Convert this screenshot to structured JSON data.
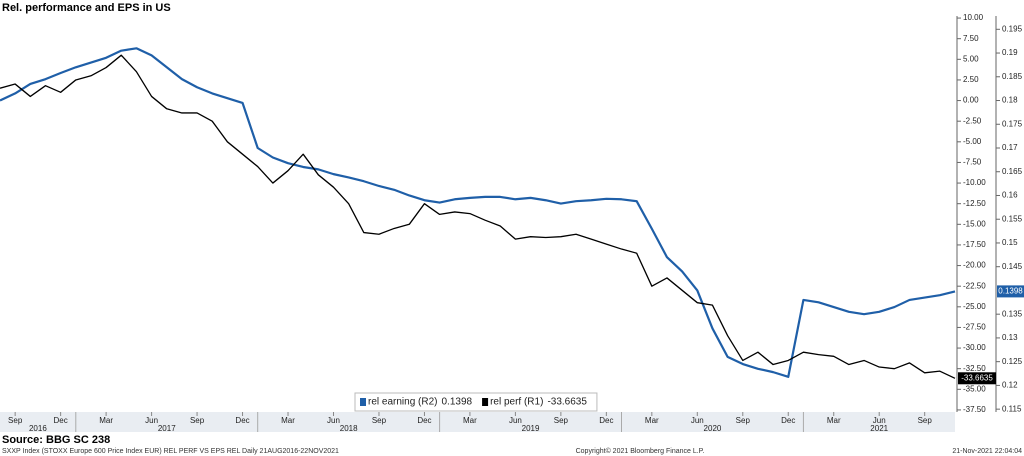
{
  "chart_data": {
    "type": "line",
    "title": "Rel. performance and EPS in US",
    "source": "Source: BBG SC 238",
    "footer": {
      "left": "SXXP Index (STOXX Europe 600 Price Index EUR) REL PERF VS EPS REL  Daily 21AUG2016-22NOV2021",
      "center": "Copyright© 2021 Bloomberg Finance L.P.",
      "right": "21-Nov-2021 22:04:04"
    },
    "x": [
      "2016-08",
      "2016-09",
      "2016-10",
      "2016-11",
      "2016-12",
      "2017-01",
      "2017-02",
      "2017-03",
      "2017-04",
      "2017-05",
      "2017-06",
      "2017-07",
      "2017-08",
      "2017-09",
      "2017-10",
      "2017-11",
      "2017-12",
      "2018-01",
      "2018-02",
      "2018-03",
      "2018-04",
      "2018-05",
      "2018-06",
      "2018-07",
      "2018-08",
      "2018-09",
      "2018-10",
      "2018-11",
      "2018-12",
      "2019-01",
      "2019-02",
      "2019-03",
      "2019-04",
      "2019-05",
      "2019-06",
      "2019-07",
      "2019-08",
      "2019-09",
      "2019-10",
      "2019-11",
      "2019-12",
      "2020-01",
      "2020-02",
      "2020-03",
      "2020-04",
      "2020-05",
      "2020-06",
      "2020-07",
      "2020-08",
      "2020-09",
      "2020-10",
      "2020-11",
      "2020-12",
      "2021-01",
      "2021-02",
      "2021-03",
      "2021-04",
      "2021-05",
      "2021-06",
      "2021-07",
      "2021-08",
      "2021-09",
      "2021-10",
      "2021-11"
    ],
    "xlim": [
      "2016-08",
      "2021-11"
    ],
    "xticks": [
      {
        "value": "2016-09",
        "label": "Sep"
      },
      {
        "value": "2016-12",
        "label": "Dec"
      },
      {
        "value": "2017-03",
        "label": "Mar"
      },
      {
        "value": "2017-06",
        "label": "Jun"
      },
      {
        "value": "2017-09",
        "label": "Sep"
      },
      {
        "value": "2017-12",
        "label": "Dec"
      },
      {
        "value": "2018-03",
        "label": "Mar"
      },
      {
        "value": "2018-06",
        "label": "Jun"
      },
      {
        "value": "2018-09",
        "label": "Sep"
      },
      {
        "value": "2018-12",
        "label": "Dec"
      },
      {
        "value": "2019-03",
        "label": "Mar"
      },
      {
        "value": "2019-06",
        "label": "Jun"
      },
      {
        "value": "2019-09",
        "label": "Sep"
      },
      {
        "value": "2019-12",
        "label": "Dec"
      },
      {
        "value": "2020-03",
        "label": "Mar"
      },
      {
        "value": "2020-06",
        "label": "Jun"
      },
      {
        "value": "2020-09",
        "label": "Sep"
      },
      {
        "value": "2020-12",
        "label": "Dec"
      },
      {
        "value": "2021-03",
        "label": "Mar"
      },
      {
        "value": "2021-06",
        "label": "Jun"
      },
      {
        "value": "2021-09",
        "label": "Sep"
      }
    ],
    "xyears": [
      "2016",
      "2017",
      "2018",
      "2019",
      "2020",
      "2021"
    ],
    "ylim": [
      -37.75,
      10.25
    ],
    "yticks": [
      {
        "value": 10,
        "label": "10.00"
      },
      {
        "value": 7.5,
        "label": "7.50"
      },
      {
        "value": 5,
        "label": "5.00"
      },
      {
        "value": 2.5,
        "label": "2.50"
      },
      {
        "value": 0,
        "label": "0.00"
      },
      {
        "value": -2.5,
        "label": "-2.50"
      },
      {
        "value": -5,
        "label": "-5.00"
      },
      {
        "value": -7.5,
        "label": "-7.50"
      },
      {
        "value": -10,
        "label": "-10.00"
      },
      {
        "value": -12.5,
        "label": "-12.50"
      },
      {
        "value": -15,
        "label": "-15.00"
      },
      {
        "value": -17.5,
        "label": "-17.50"
      },
      {
        "value": -20,
        "label": "-20.00"
      },
      {
        "value": -22.5,
        "label": "-22.50"
      },
      {
        "value": -25,
        "label": "-25.00"
      },
      {
        "value": -27.5,
        "label": "-27.50"
      },
      {
        "value": -30,
        "label": "-30.00"
      },
      {
        "value": -32.5,
        "label": "-32.50"
      },
      {
        "value": -35,
        "label": "-35.00"
      },
      {
        "value": -37.5,
        "label": "-37.50"
      }
    ],
    "y2lim": [
      0.1144,
      0.1978
    ],
    "y2ticks": [
      0.195,
      0.19,
      0.185,
      0.18,
      0.175,
      0.17,
      0.165,
      0.16,
      0.155,
      0.15,
      0.145,
      0.135,
      0.13,
      0.125,
      0.12,
      0.115
    ],
    "grid": false,
    "legend": "bottom",
    "series": [
      {
        "name": "rel earning (R2)",
        "color": "#1f5fa8",
        "axis": "y2",
        "values": [
          0.18,
          0.1815,
          0.1835,
          0.1845,
          0.1858,
          0.187,
          0.188,
          0.189,
          0.1905,
          0.191,
          0.1895,
          0.187,
          0.1845,
          0.1828,
          0.1815,
          0.1805,
          0.1795,
          0.17,
          0.168,
          0.1668,
          0.166,
          0.1655,
          0.1645,
          0.1638,
          0.163,
          0.162,
          0.1612,
          0.16,
          0.159,
          0.1585,
          0.1592,
          0.1595,
          0.1597,
          0.1597,
          0.1592,
          0.1595,
          0.159,
          0.1583,
          0.1588,
          0.159,
          0.1593,
          0.1592,
          0.1588,
          0.153,
          0.147,
          0.144,
          0.14,
          0.132,
          0.126,
          0.1245,
          0.1235,
          0.1228,
          0.1218,
          0.138,
          0.1375,
          0.1365,
          0.1355,
          0.135,
          0.1355,
          0.1365,
          0.138,
          0.1385,
          0.139,
          0.1398
        ]
      },
      {
        "name": "rel perf (R1)",
        "color": "#000000",
        "axis": "y",
        "values": [
          1.5,
          2.0,
          0.5,
          1.8,
          1.0,
          2.5,
          3.0,
          4.0,
          5.5,
          3.5,
          0.5,
          -1.0,
          -1.5,
          -1.5,
          -2.5,
          -5.0,
          -6.5,
          -8.0,
          -10.0,
          -8.5,
          -6.5,
          -9.0,
          -10.5,
          -12.5,
          -16.0,
          -16.2,
          -15.5,
          -15.0,
          -12.5,
          -13.8,
          -13.5,
          -13.7,
          -14.5,
          -15.2,
          -16.8,
          -16.5,
          -16.6,
          -16.5,
          -16.2,
          -16.8,
          -17.4,
          -18.0,
          -18.5,
          -22.5,
          -21.5,
          -23.0,
          -24.5,
          -24.8,
          -28.5,
          -31.5,
          -30.5,
          -32.0,
          -31.5,
          -30.5,
          -30.8,
          -31.0,
          -32.0,
          -31.5,
          -32.3,
          -32.5,
          -31.8,
          -33.0,
          -32.8,
          -33.6635
        ]
      }
    ]
  }
}
